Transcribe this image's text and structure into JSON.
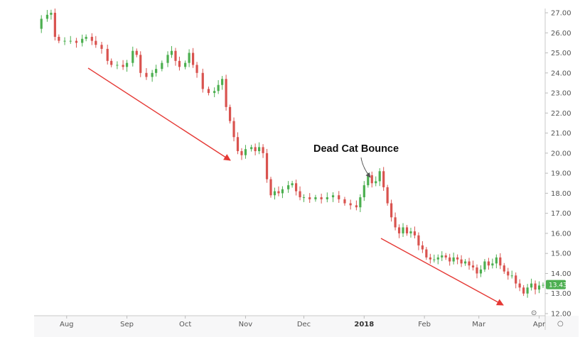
{
  "chart_data": {
    "type": "candlestick",
    "title": "",
    "xlabel": "",
    "ylabel": "",
    "ylim": [
      12,
      27
    ],
    "y_ticks": [
      "12.00",
      "13.00",
      "14.00",
      "15.00",
      "16.00",
      "17.00",
      "18.00",
      "19.00",
      "20.00",
      "21.00",
      "22.00",
      "23.00",
      "24.00",
      "25.00",
      "26.00",
      "27.00"
    ],
    "x_ticks": [
      {
        "label": "Aug",
        "day": 16
      },
      {
        "label": "Sep",
        "day": 47
      },
      {
        "label": "Oct",
        "day": 77
      },
      {
        "label": "Nov",
        "day": 108
      },
      {
        "label": "Dec",
        "day": 138
      },
      {
        "label": "2018",
        "day": 169,
        "bold": true
      },
      {
        "label": "Feb",
        "day": 200
      },
      {
        "label": "Mar",
        "day": 228
      },
      {
        "label": "Apr",
        "day": 259
      }
    ],
    "colors": {
      "up": "#4caf50",
      "down": "#d9534f",
      "trend_arrow": "#e53935",
      "annotation_arrow": "#555555"
    },
    "last_price": "13.43",
    "annotation": {
      "text": "Dead Cat Bounce"
    },
    "closes": [
      [
        0,
        26.2
      ],
      [
        3,
        26.7
      ],
      [
        6,
        26.9
      ],
      [
        8,
        27.0
      ],
      [
        10,
        25.8
      ],
      [
        12,
        25.6
      ],
      [
        15,
        25.6
      ],
      [
        18,
        25.6
      ],
      [
        21,
        25.5
      ],
      [
        24,
        25.7
      ],
      [
        26,
        25.8
      ],
      [
        29,
        25.6
      ],
      [
        31,
        25.4
      ],
      [
        34,
        25.2
      ],
      [
        37,
        24.6
      ],
      [
        39,
        24.4
      ],
      [
        42,
        24.4
      ],
      [
        45,
        24.3
      ],
      [
        47,
        24.5
      ],
      [
        50,
        25.1
      ],
      [
        52,
        24.9
      ],
      [
        54,
        24.0
      ],
      [
        57,
        23.8
      ],
      [
        60,
        24.0
      ],
      [
        62,
        24.2
      ],
      [
        65,
        24.5
      ],
      [
        68,
        24.9
      ],
      [
        70,
        25.1
      ],
      [
        72,
        24.6
      ],
      [
        74,
        24.3
      ],
      [
        77,
        24.5
      ],
      [
        79,
        25.0
      ],
      [
        81,
        24.4
      ],
      [
        83,
        24.0
      ],
      [
        86,
        23.2
      ],
      [
        89,
        23.0
      ],
      [
        92,
        23.1
      ],
      [
        94,
        23.4
      ],
      [
        96,
        23.7
      ],
      [
        98,
        22.3
      ],
      [
        100,
        21.6
      ],
      [
        102,
        20.8
      ],
      [
        104,
        20.1
      ],
      [
        106,
        19.9
      ],
      [
        108,
        20.2
      ],
      [
        111,
        20.3
      ],
      [
        113,
        20.1
      ],
      [
        115,
        20.3
      ],
      [
        117,
        20.0
      ],
      [
        119,
        18.7
      ],
      [
        121,
        17.9
      ],
      [
        123,
        18.1
      ],
      [
        125,
        18.0
      ],
      [
        127,
        18.2
      ],
      [
        130,
        18.4
      ],
      [
        132,
        18.5
      ],
      [
        134,
        18.1
      ],
      [
        136,
        17.8
      ],
      [
        138,
        17.8
      ],
      [
        141,
        17.7
      ],
      [
        144,
        17.8
      ],
      [
        147,
        17.7
      ],
      [
        150,
        17.8
      ],
      [
        153,
        17.9
      ],
      [
        156,
        17.7
      ],
      [
        159,
        17.5
      ],
      [
        162,
        17.4
      ],
      [
        165,
        17.3
      ],
      [
        167,
        17.8
      ],
      [
        169,
        18.4
      ],
      [
        171,
        18.9
      ],
      [
        173,
        18.5
      ],
      [
        175,
        18.6
      ],
      [
        177,
        19.1
      ],
      [
        179,
        18.3
      ],
      [
        181,
        17.5
      ],
      [
        183,
        16.8
      ],
      [
        185,
        16.3
      ],
      [
        187,
        16.0
      ],
      [
        189,
        16.3
      ],
      [
        191,
        16.0
      ],
      [
        193,
        16.1
      ],
      [
        195,
        15.9
      ],
      [
        197,
        15.4
      ],
      [
        199,
        15.2
      ],
      [
        201,
        14.8
      ],
      [
        203,
        14.7
      ],
      [
        205,
        14.7
      ],
      [
        207,
        14.8
      ],
      [
        209,
        14.9
      ],
      [
        211,
        14.8
      ],
      [
        213,
        14.6
      ],
      [
        215,
        14.8
      ],
      [
        217,
        14.7
      ],
      [
        219,
        14.5
      ],
      [
        221,
        14.6
      ],
      [
        223,
        14.4
      ],
      [
        225,
        14.3
      ],
      [
        227,
        14.0
      ],
      [
        229,
        14.2
      ],
      [
        231,
        14.6
      ],
      [
        233,
        14.4
      ],
      [
        235,
        14.5
      ],
      [
        237,
        14.8
      ],
      [
        239,
        14.4
      ],
      [
        241,
        14.1
      ],
      [
        243,
        13.9
      ],
      [
        245,
        13.9
      ],
      [
        247,
        13.5
      ],
      [
        249,
        13.3
      ],
      [
        251,
        13.0
      ],
      [
        253,
        13.3
      ],
      [
        255,
        13.5
      ],
      [
        257,
        13.2
      ],
      [
        259,
        13.4
      ],
      [
        261,
        13.43
      ]
    ]
  },
  "axis_controls": {
    "reset_symbol": "⊙",
    "settings_symbol": "○"
  }
}
